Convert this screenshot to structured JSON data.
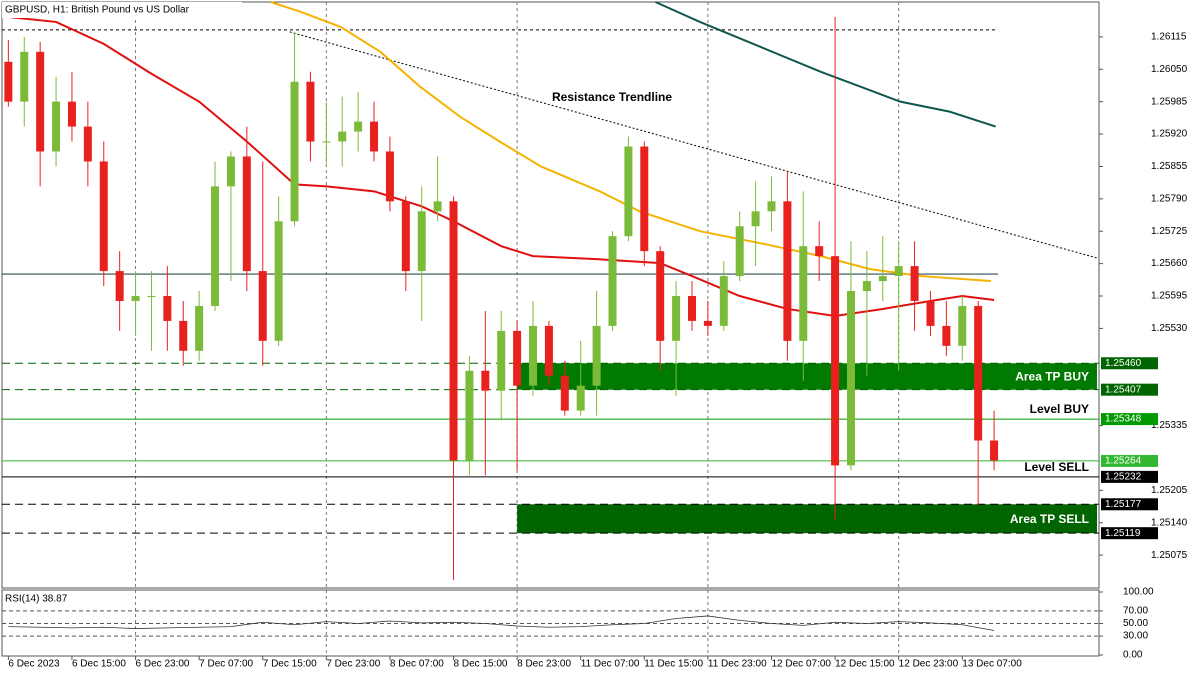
{
  "chart_data": {
    "type": "candlestick",
    "title": "GBPUSD, H1:  British Pound vs US Dollar",
    "bull_color": "#7cbb3a",
    "bear_color": "#e8211f",
    "xlim": [
      -0.4,
      68.6
    ],
    "ylim": [
      1.25009,
      1.26185
    ],
    "xticks": [
      {
        "value": 0,
        "label": "6 Dec 2023"
      },
      {
        "value": 4,
        "label": "6 Dec 15:00"
      },
      {
        "value": 8,
        "label": "6 Dec 23:00"
      },
      {
        "value": 12,
        "label": "7 Dec 07:00"
      },
      {
        "value": 16,
        "label": "7 Dec 15:00"
      },
      {
        "value": 20,
        "label": "7 Dec 23:00"
      },
      {
        "value": 24,
        "label": "8 Dec 07:00"
      },
      {
        "value": 28,
        "label": "8 Dec 15:00"
      },
      {
        "value": 32,
        "label": "8 Dec 23:00"
      },
      {
        "value": 36,
        "label": "11 Dec 07:00"
      },
      {
        "value": 40,
        "label": "11 Dec 15:00"
      },
      {
        "value": 44,
        "label": "11 Dec 23:00"
      },
      {
        "value": 48,
        "label": "12 Dec 07:00"
      },
      {
        "value": 52,
        "label": "12 Dec 15:00"
      },
      {
        "value": 56,
        "label": "12 Dec 23:00"
      },
      {
        "value": 60,
        "label": "13 Dec 07:00"
      }
    ],
    "yticks": [
      1.26115,
      {
        "value": 1.2605,
        "label": "1.26050"
      },
      1.25985,
      {
        "value": 1.2592,
        "label": "1.25920"
      },
      1.25855,
      {
        "value": 1.2579,
        "label": "1.25790"
      },
      1.25725,
      {
        "value": 1.2566,
        "label": "1.25660"
      },
      1.25595,
      {
        "value": 1.2553,
        "label": "1.25530"
      },
      1.25335,
      1.25205,
      {
        "value": 1.2514,
        "label": "1.25140"
      },
      1.25075
    ],
    "open": [
      1.26065,
      1.25985,
      1.26085,
      1.25885,
      1.25985,
      1.25935,
      1.25865,
      1.25645,
      1.25585,
      1.25595,
      1.25595,
      1.25545,
      1.25485,
      1.25575,
      1.25815,
      1.25875,
      1.25645,
      1.25505,
      1.25745,
      1.26025,
      1.25905,
      1.25905,
      1.25925,
      1.25945,
      1.25885,
      1.25785,
      1.25645,
      1.25765,
      1.25785,
      1.25265,
      1.25445,
      1.25405,
      1.25525,
      1.25415,
      1.25535,
      1.25435,
      1.25365,
      1.25415,
      1.25535,
      1.25715,
      1.25895,
      1.25685,
      1.25505,
      1.25595,
      1.25545,
      1.25535,
      1.25635,
      1.25735,
      1.25765,
      1.25785,
      1.25505,
      1.25695,
      1.25675,
      1.25255,
      1.25605,
      1.25625,
      1.25635,
      1.25655,
      1.25585,
      1.25535,
      1.25495,
      1.25575,
      1.25305
    ],
    "high": [
      1.26109,
      1.26115,
      1.26105,
      1.26035,
      1.26045,
      1.25985,
      1.25905,
      1.25685,
      1.25645,
      1.25645,
      1.25655,
      1.25585,
      1.25605,
      1.25865,
      1.25885,
      1.25935,
      1.25865,
      1.25795,
      1.26125,
      1.26045,
      1.25985,
      1.25995,
      1.26005,
      1.25985,
      1.25915,
      1.25795,
      1.25815,
      1.25875,
      1.25795,
      1.25475,
      1.25565,
      1.25565,
      1.25545,
      1.25585,
      1.25545,
      1.25465,
      1.25505,
      1.25605,
      1.25725,
      1.25915,
      1.25905,
      1.25695,
      1.25625,
      1.25625,
      1.25585,
      1.25665,
      1.25765,
      1.25825,
      1.25835,
      1.25845,
      1.25805,
      1.25745,
      1.26155,
      1.25705,
      1.25685,
      1.25715,
      1.25705,
      1.25705,
      1.25605,
      1.25585,
      1.25595,
      1.25585,
      1.25365
    ],
    "low": [
      1.25975,
      1.25935,
      1.25815,
      1.25855,
      1.25905,
      1.25815,
      1.25615,
      1.25525,
      1.25515,
      1.25485,
      1.25485,
      1.25455,
      1.25465,
      1.25565,
      1.25625,
      1.25605,
      1.25455,
      1.25495,
      1.25735,
      1.25865,
      1.25855,
      1.25855,
      1.25885,
      1.25865,
      1.25765,
      1.25605,
      1.25545,
      1.25745,
      1.25025,
      1.25235,
      1.25235,
      1.25345,
      1.25245,
      1.25395,
      1.25415,
      1.25355,
      1.25355,
      1.25355,
      1.25525,
      1.25705,
      1.25655,
      1.25445,
      1.25395,
      1.25525,
      1.25515,
      1.25525,
      1.25625,
      1.25655,
      1.25725,
      1.25465,
      1.25425,
      1.25625,
      1.25145,
      1.25245,
      1.25435,
      1.25585,
      1.25445,
      1.25525,
      1.25515,
      1.25475,
      1.25465,
      1.25175,
      1.25245
    ],
    "close": [
      1.25985,
      1.26085,
      1.25885,
      1.25985,
      1.25935,
      1.25865,
      1.25645,
      1.25585,
      1.25595,
      1.25595,
      1.25545,
      1.25485,
      1.25575,
      1.25815,
      1.25875,
      1.25645,
      1.25505,
      1.25745,
      1.26025,
      1.25905,
      1.25905,
      1.25925,
      1.25945,
      1.25885,
      1.25785,
      1.25645,
      1.25765,
      1.25785,
      1.25265,
      1.25445,
      1.25405,
      1.25525,
      1.25415,
      1.25535,
      1.25435,
      1.25365,
      1.25415,
      1.25535,
      1.25715,
      1.25895,
      1.25685,
      1.25505,
      1.25595,
      1.25545,
      1.25535,
      1.25635,
      1.25735,
      1.25765,
      1.25785,
      1.25505,
      1.25695,
      1.25675,
      1.25255,
      1.25605,
      1.25625,
      1.25635,
      1.25655,
      1.25585,
      1.25535,
      1.25495,
      1.25575,
      1.25305,
      1.25265
    ],
    "moving_averages": [
      {
        "color": "#e01010",
        "x": [
          0,
          3,
          6,
          9,
          12,
          15,
          18,
          20,
          23,
          26,
          28,
          31,
          33,
          37,
          41,
          43,
          46,
          49,
          52,
          55,
          58,
          60,
          62
        ],
        "values": [
          1.26155,
          1.26145,
          1.26101,
          1.26041,
          1.25985,
          1.25905,
          1.25819,
          1.25815,
          1.25805,
          1.25775,
          1.25745,
          1.25695,
          1.25675,
          1.25669,
          1.25661,
          1.25635,
          1.25595,
          1.25569,
          1.25555,
          1.25569,
          1.25585,
          1.25595,
          1.25587
        ]
      },
      {
        "color": "#f5b300",
        "x": [
          16.5,
          18.4,
          20.9,
          23.4,
          25.9,
          28.4,
          30.9,
          33.5,
          37.2,
          39.7,
          43.5,
          47.3,
          51.1,
          54.2,
          57.4,
          61.8
        ],
        "values": [
          1.26185,
          1.26165,
          1.26135,
          1.26085,
          1.26015,
          1.25955,
          1.25905,
          1.25855,
          1.25805,
          1.25765,
          1.25725,
          1.25701,
          1.25675,
          1.25649,
          1.25635,
          1.25625
        ]
      },
      {
        "color": "#10584f",
        "x": [
          40.7,
          43.5,
          47.3,
          51.1,
          53.6,
          56.1,
          59.2,
          62.1
        ],
        "values": [
          1.26185,
          1.26145,
          1.26095,
          1.26045,
          1.26015,
          1.25985,
          1.25965,
          1.25935
        ]
      }
    ],
    "hlines": [
      {
        "value": 1.25639,
        "color": "#2f4f4f",
        "dash": "none"
      },
      {
        "value": 1.26129,
        "color": "#000000",
        "dash": "3,3"
      }
    ],
    "trendline": {
      "label": "Resistance Trendline",
      "x": [
        17.7,
        68.5
      ],
      "values": [
        1.26125,
        1.25671
      ]
    },
    "zones": [
      {
        "name": "Area TP BUY",
        "color": "#007a00",
        "line_color": "#006400",
        "top": {
          "value": 1.2546,
          "label": "1.25460"
        },
        "bottom": {
          "value": 1.25407,
          "label": "1.25407"
        }
      },
      {
        "name": "Area TP SELL",
        "color": "#006400",
        "line_color": "#000000",
        "top": {
          "value": 1.25177,
          "label": "1.25177"
        },
        "bottom": {
          "value": 1.25119,
          "label": "1.25119"
        }
      }
    ],
    "levels": [
      {
        "name": "Level BUY",
        "color": "#009a00",
        "price": {
          "value": 1.25348,
          "label": "1.25348"
        }
      },
      {
        "name": "Level SELL",
        "color": "#000000",
        "price": {
          "value": 1.25232,
          "label": "1.25232"
        }
      }
    ],
    "current_price": {
      "value": 1.25264,
      "label": "1.25264",
      "color": "#33b833"
    },
    "rsi": {
      "label": "RSI(14) 38.87",
      "ylim": [
        0,
        100
      ],
      "yticks": [
        {
          "value": 100,
          "label": "100.00"
        },
        {
          "value": 70,
          "label": "70.00"
        },
        {
          "value": 50,
          "label": "50.00"
        },
        {
          "value": 30,
          "label": "30.00"
        },
        {
          "value": 0,
          "label": "0.00"
        }
      ],
      "x": [
        0,
        2,
        4,
        6,
        8,
        10,
        12,
        14,
        16,
        18,
        20,
        22,
        24,
        26,
        28,
        30,
        32,
        34,
        36,
        38,
        40,
        42,
        44,
        46,
        48,
        50,
        52,
        54,
        56,
        58,
        60,
        62
      ],
      "values": [
        45,
        44,
        43,
        44,
        42,
        43,
        44,
        45,
        52,
        48,
        53,
        50,
        54,
        51,
        52,
        50,
        46,
        44,
        45,
        48,
        50,
        58,
        62,
        55,
        50,
        47,
        52,
        50,
        53,
        51,
        48,
        38.87
      ]
    }
  }
}
